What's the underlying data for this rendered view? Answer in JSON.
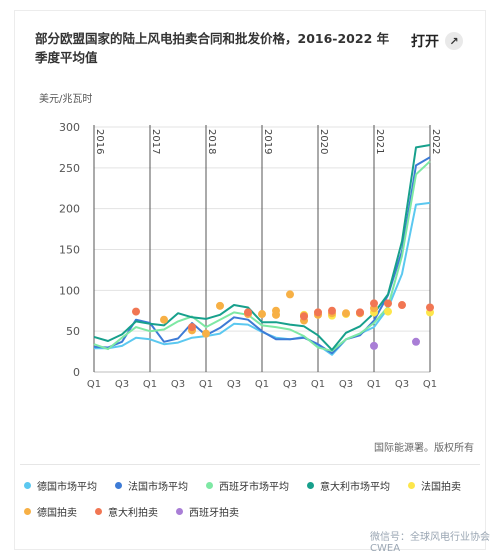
{
  "header": {
    "title": "部分欧盟国家的陆上风电拍卖合同和批发价格，2016-2022 年季度平均值",
    "open_label": "打开",
    "open_icon": "expand-arrow-icon"
  },
  "chart_data": {
    "type": "line",
    "ylabel": "美元/兆瓦时",
    "ylim": [
      0,
      300
    ],
    "yticks": [
      0,
      50,
      100,
      150,
      200,
      250,
      300
    ],
    "grid": "horizontal",
    "years": [
      "2016",
      "2017",
      "2018",
      "2019",
      "2020",
      "2021",
      "2022"
    ],
    "xticks": [
      "Q1",
      "Q3",
      "Q1",
      "Q3",
      "Q1",
      "Q3",
      "Q1",
      "Q3",
      "Q1",
      "Q3",
      "Q1",
      "Q3",
      "Q1"
    ],
    "source": "国际能源署。版权所有",
    "series": [
      {
        "name": "德国市场平均",
        "color": "#5bc8f0",
        "kind": "line",
        "values": [
          29,
          29,
          32,
          42,
          40,
          34,
          36,
          42,
          44,
          47,
          59,
          58,
          49,
          42,
          40,
          43,
          33,
          21,
          40,
          47,
          55,
          78,
          120,
          205,
          207
        ]
      },
      {
        "name": "法国市场平均",
        "color": "#3d7bd6",
        "kind": "line",
        "values": [
          31,
          30,
          37,
          64,
          60,
          37,
          41,
          60,
          45,
          54,
          67,
          64,
          50,
          40,
          40,
          42,
          34,
          23,
          40,
          45,
          63,
          94,
          148,
          253,
          263
        ]
      },
      {
        "name": "西班牙市场平均",
        "color": "#7ee8a4",
        "kind": "line",
        "values": [
          34,
          28,
          42,
          55,
          50,
          52,
          62,
          68,
          55,
          64,
          73,
          70,
          57,
          55,
          52,
          44,
          30,
          26,
          40,
          47,
          60,
          80,
          142,
          242,
          258
        ]
      },
      {
        "name": "意大利市场平均",
        "color": "#17a08c",
        "kind": "line",
        "values": [
          43,
          38,
          46,
          62,
          59,
          57,
          72,
          67,
          65,
          70,
          82,
          79,
          61,
          61,
          58,
          56,
          45,
          27,
          48,
          56,
          72,
          95,
          160,
          275,
          278
        ]
      },
      {
        "name": "法国拍卖",
        "color": "#fde64b",
        "kind": "dots",
        "points": [
          [
            15,
            70
          ],
          [
            17,
            69
          ],
          [
            18,
            71
          ],
          [
            19,
            72
          ],
          [
            20,
            73
          ],
          [
            21,
            74
          ],
          [
            24,
            73
          ]
        ]
      },
      {
        "name": "德国拍卖",
        "color": "#f7b045",
        "kind": "dots",
        "points": [
          [
            5,
            64
          ],
          [
            7,
            51
          ],
          [
            8,
            47
          ],
          [
            9,
            81
          ],
          [
            11,
            71
          ],
          [
            12,
            71
          ],
          [
            13,
            70
          ],
          [
            13,
            75
          ],
          [
            14,
            95
          ],
          [
            15,
            69
          ],
          [
            15,
            63
          ],
          [
            16,
            70
          ],
          [
            17,
            72
          ],
          [
            18,
            72
          ],
          [
            19,
            72
          ],
          [
            20,
            78
          ]
        ]
      },
      {
        "name": "意大利拍卖",
        "color": "#f17653",
        "kind": "dots",
        "points": [
          [
            3,
            74
          ],
          [
            7,
            55
          ],
          [
            11,
            73
          ],
          [
            15,
            68
          ],
          [
            16,
            73
          ],
          [
            17,
            75
          ],
          [
            19,
            73
          ],
          [
            20,
            84
          ],
          [
            21,
            84
          ],
          [
            22,
            82
          ],
          [
            24,
            79
          ]
        ]
      },
      {
        "name": "西班牙拍卖",
        "color": "#a97ed6",
        "kind": "dots",
        "points": [
          [
            20,
            32
          ],
          [
            23,
            37
          ]
        ]
      }
    ]
  },
  "watermark": "微信号：全球风电行业协会CWEA"
}
